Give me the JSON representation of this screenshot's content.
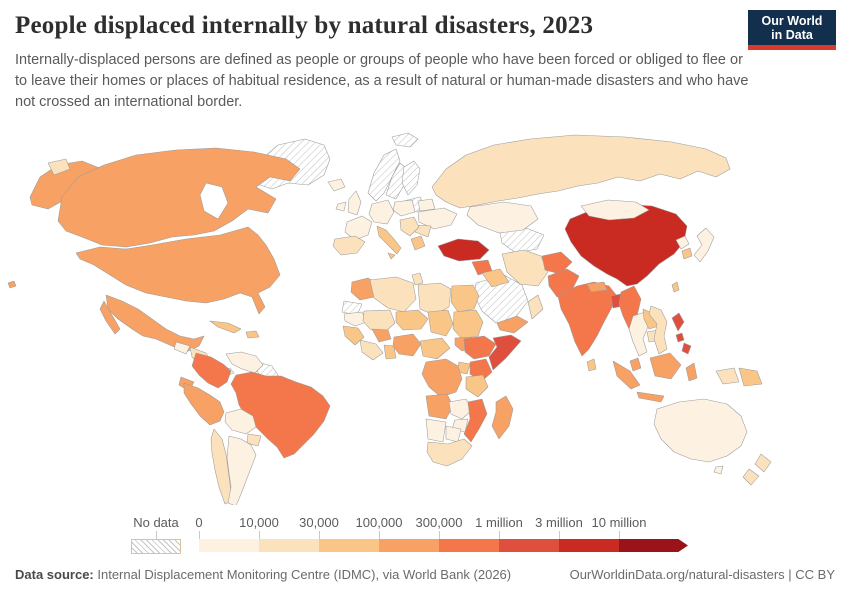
{
  "header": {
    "title": "People displaced internally by natural disasters, 2023",
    "subtitle": "Internally-displaced persons are defined as people or groups of people who have been forced or obliged to flee or to leave their homes or places of habitual residence, as a result of natural or human-made disasters and who have not crossed an international border.",
    "logo": {
      "line1": "Our World",
      "line2": "in Data",
      "bg_color": "#12304d",
      "accent_color": "#d93a2b"
    }
  },
  "chart_data": {
    "type": "choropleth",
    "title": "People displaced internally by natural disasters",
    "year": "2023",
    "unit": "people displaced",
    "legend": {
      "no_data_label": "No data",
      "tick_labels": [
        "0",
        "10,000",
        "30,000",
        "100,000",
        "300,000",
        "1 million",
        "3 million",
        "10 million"
      ],
      "bin_ranges": [
        "0–10,000",
        "10,000–30,000",
        "30,000–100,000",
        "100,000–300,000",
        "300,000–1 million",
        "1–3 million",
        "3–10 million",
        "10 million+"
      ],
      "bin_colors": [
        "#fdf1e1",
        "#fce1bd",
        "#fac688",
        "#f8a164",
        "#f3774b",
        "#de4f3e",
        "#c92a22",
        "#9b131a"
      ],
      "no_data_pattern": "diagonal-hatch"
    },
    "regions": {
      "greenland": "no_data",
      "svalbard": "no_data",
      "norway": "no_data",
      "sweden": "no_data",
      "finland": "no_data",
      "baltics": "no_data",
      "saudi-arabia": "no_data",
      "turkmenistan-uzbekistan": "no_data",
      "western-sahara": "no_data",
      "guyanas": "no_data",
      "alaska": 3,
      "chukotka": 1,
      "hawaii": 3,
      "canada": 3,
      "usa": 3,
      "mexico": 3,
      "baja": 3,
      "guatemala": 0,
      "honduras-nicaragua": 1,
      "costa-panama": 0,
      "cuba": 2,
      "hispaniola": 2,
      "colombia": 4,
      "venezuela": 0,
      "ecuador": 3,
      "peru": 3,
      "brazil": 4,
      "bolivia": 0,
      "paraguay": 1,
      "chile": 1,
      "argentina": 0,
      "morocco": 3,
      "algeria": 1,
      "tunisia": 1,
      "libya": 1,
      "egypt": 2,
      "mauritania": 0,
      "mali": 1,
      "niger": 2,
      "chad": 2,
      "sudan": 2,
      "senegal-guinea": 2,
      "sierra-ivory": 1,
      "burkina": 3,
      "ghana-togo": 2,
      "nigeria": 3,
      "cameroon-car": 2,
      "south-sudan": 3,
      "ethiopia": 4,
      "somalia": 5,
      "kenya": 4,
      "uganda": 2,
      "drc": 3,
      "tanzania": 2,
      "angola": 3,
      "zambia": 0,
      "mozambique": 4,
      "zimbabwe": 0,
      "madagascar": 3,
      "namibia": 0,
      "botswana": 0,
      "south-africa": 1,
      "iceland": 0,
      "ireland": 0,
      "uk": 0,
      "france": 0,
      "spain": 1,
      "germany": 0,
      "poland": 0,
      "ukraine": 0,
      "belarus": 0,
      "romania": 1,
      "balkans": 1,
      "italy": 2,
      "sicily": 2,
      "greece": 2,
      "russia": 1,
      "kazakhstan": 0,
      "turkey": 6,
      "syria": 4,
      "iraq": 2,
      "iran": 1,
      "yemen": 3,
      "oman": 1,
      "afghanistan": 4,
      "pakistan": 4,
      "india": 4,
      "nepal": 3,
      "bangladesh": 5,
      "sri-lanka": 2,
      "myanmar": 4,
      "thailand": 0,
      "laos": 2,
      "cambodia": 1,
      "vietnam": 1,
      "china": 6,
      "mongolia": 0,
      "north-korea": 0,
      "south-korea": 2,
      "japan": 0,
      "taiwan": 2,
      "philippines-north": 5,
      "philippines-mid": 5,
      "philippines-south": 5,
      "malaysia": 3,
      "indonesia-sumatra": 3,
      "indonesia-java": 3,
      "indonesia-borneo": 3,
      "indonesia-sulawesi": 3,
      "west-papua": 1,
      "png": 2,
      "australia": 0,
      "tasmania": 0,
      "nz-north": 1,
      "nz-south": 1
    }
  },
  "footer": {
    "source_label": "Data source:",
    "source_text": " Internal Displacement Monitoring Centre (IDMC), via World Bank (2026)",
    "link_text": "OurWorldinData.org/natural-disasters | CC BY"
  }
}
